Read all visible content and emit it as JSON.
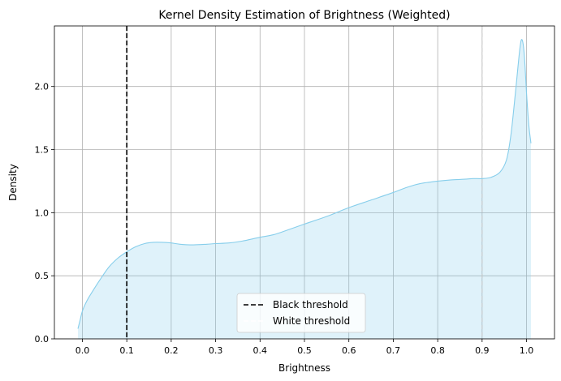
{
  "chart_data": {
    "type": "area",
    "title": "Kernel Density Estimation of Brightness (Weighted)",
    "xlabel": "Brightness",
    "ylabel": "Density",
    "xlim": [
      -0.063,
      1.063
    ],
    "ylim": [
      0,
      2.48
    ],
    "xticks": [
      0.0,
      0.1,
      0.2,
      0.3,
      0.4,
      0.5,
      0.6,
      0.7,
      0.8,
      0.9,
      1.0
    ],
    "xtick_labels": [
      "0.0",
      "0.1",
      "0.2",
      "0.3",
      "0.4",
      "0.5",
      "0.6",
      "0.7",
      "0.8",
      "0.9",
      "1.0"
    ],
    "yticks": [
      0.0,
      0.5,
      1.0,
      1.5,
      2.0
    ],
    "ytick_labels": [
      "0.0",
      "0.5",
      "1.0",
      "1.5",
      "2.0"
    ],
    "grid": true,
    "series": [
      {
        "color": "#87ceeb",
        "fill_color": "#87ceeb",
        "fill_alpha": 0.27,
        "x": [
          -0.01,
          -0.005,
          0.0,
          0.01,
          0.02,
          0.04,
          0.06,
          0.08,
          0.1,
          0.12,
          0.14,
          0.16,
          0.18,
          0.2,
          0.22,
          0.25,
          0.28,
          0.3,
          0.33,
          0.36,
          0.4,
          0.43,
          0.46,
          0.5,
          0.55,
          0.6,
          0.65,
          0.7,
          0.73,
          0.76,
          0.8,
          0.83,
          0.86,
          0.88,
          0.9,
          0.92,
          0.94,
          0.955,
          0.965,
          0.975,
          0.985,
          0.99,
          0.995,
          1.0,
          1.005,
          1.01
        ],
        "y": [
          0.08,
          0.15,
          0.22,
          0.3,
          0.36,
          0.47,
          0.57,
          0.64,
          0.69,
          0.73,
          0.755,
          0.765,
          0.765,
          0.76,
          0.75,
          0.745,
          0.75,
          0.755,
          0.76,
          0.775,
          0.805,
          0.825,
          0.86,
          0.91,
          0.97,
          1.04,
          1.1,
          1.16,
          1.2,
          1.23,
          1.25,
          1.26,
          1.265,
          1.27,
          1.27,
          1.28,
          1.32,
          1.42,
          1.62,
          1.95,
          2.3,
          2.37,
          2.25,
          1.95,
          1.7,
          1.55
        ]
      }
    ],
    "reference_lines": [
      {
        "name": "Black threshold",
        "x": 0.1,
        "color": "#000000",
        "style": "dashed"
      },
      {
        "name": "White threshold",
        "x": 0.9,
        "color": "#ffffff",
        "style": "dashed"
      }
    ],
    "legend": {
      "placement": "lower-center",
      "entries": [
        "Black threshold",
        "White threshold"
      ]
    }
  }
}
